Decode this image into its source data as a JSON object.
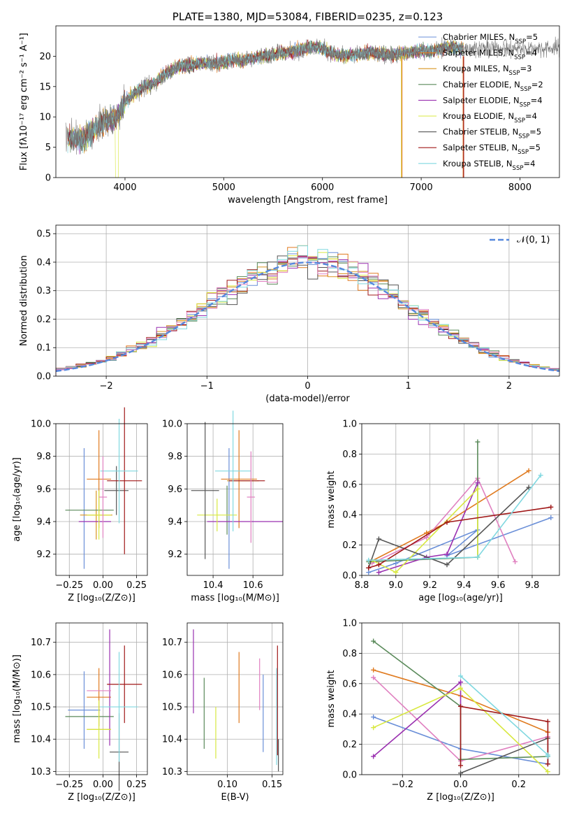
{
  "colors": {
    "chabrier_miles": "#6a8fd8",
    "salpeter_miles": "#e07b20",
    "kroupa_miles": "#d99520",
    "chabrier_elodie": "#5a8a5a",
    "salpeter_elodie": "#9a30b0",
    "kroupa_elodie": "#d8e840",
    "chabrier_stelib": "#555555",
    "salpeter_stelib": "#a01818",
    "kroupa_stelib": "#80d8e0",
    "pink": "#e080c0",
    "gaussian": "#5588dd",
    "grid": "#b0b0b0"
  },
  "chart_data": [
    {
      "id": "spectrum",
      "type": "line",
      "title": "PLATE=1380, MJD=53084, FIBERID=0235, z=0.123",
      "xlabel": "wavelength [Angstrom, rest frame]",
      "ylabel": "Flux [fλ10⁻¹⁷ erg cm⁻² s⁻¹ A⁻¹]",
      "xlim": [
        3300,
        8400
      ],
      "ylim": [
        0,
        25
      ],
      "xticks": [
        4000,
        5000,
        6000,
        7000,
        8000
      ],
      "yticks": [
        0,
        5,
        10,
        15,
        20
      ],
      "grid": false,
      "legend_position": "right",
      "legend": [
        {
          "label": "Chabrier MILES, N",
          "sub": "SSP",
          "tail": "=5",
          "color": "#6a8fd8"
        },
        {
          "label": "Salpeter MILES, N",
          "sub": "SSP",
          "tail": "=4",
          "color": "#e07b20"
        },
        {
          "label": "Kroupa MILES, N",
          "sub": "SSP",
          "tail": "=3",
          "color": "#d99520"
        },
        {
          "label": "Chabrier ELODIE, N",
          "sub": "SSP",
          "tail": "=2",
          "color": "#5a8a5a"
        },
        {
          "label": "Salpeter ELODIE, N",
          "sub": "SSP",
          "tail": "=4",
          "color": "#9a30b0"
        },
        {
          "label": "Kroupa ELODIE, N",
          "sub": "SSP",
          "tail": "=4",
          "color": "#d8e840"
        },
        {
          "label": "Chabrier STELIB, N",
          "sub": "SSP",
          "tail": "=5",
          "color": "#555555"
        },
        {
          "label": "Salpeter STELIB, N",
          "sub": "SSP",
          "tail": "=5",
          "color": "#a01818"
        },
        {
          "label": "Kroupa STELIB, N",
          "sub": "SSP",
          "tail": "=4",
          "color": "#80d8e0"
        }
      ],
      "continuum": [
        [
          3400,
          6.5
        ],
        [
          3500,
          6.3
        ],
        [
          3600,
          6.5
        ],
        [
          3700,
          8
        ],
        [
          3800,
          9.5
        ],
        [
          3900,
          9.5
        ],
        [
          4000,
          12.5
        ],
        [
          4100,
          14
        ],
        [
          4200,
          15
        ],
        [
          4300,
          15.5
        ],
        [
          4400,
          17
        ],
        [
          4500,
          18
        ],
        [
          4600,
          18.5
        ],
        [
          4700,
          18.5
        ],
        [
          4800,
          19
        ],
        [
          4900,
          18.8
        ],
        [
          5000,
          19
        ],
        [
          5100,
          19.5
        ],
        [
          5200,
          19.2
        ],
        [
          5300,
          19.7
        ],
        [
          5400,
          20
        ],
        [
          5500,
          20.3
        ],
        [
          5600,
          20.5
        ],
        [
          5700,
          20.8
        ],
        [
          5800,
          21.3
        ],
        [
          5900,
          21.7
        ],
        [
          6000,
          21.3
        ],
        [
          6100,
          20.5
        ],
        [
          6200,
          20
        ],
        [
          6300,
          20.2
        ],
        [
          6400,
          20.5
        ],
        [
          6500,
          20.7
        ],
        [
          6600,
          20.2
        ],
        [
          6700,
          20.3
        ],
        [
          6800,
          20.5
        ],
        [
          6900,
          20.7
        ],
        [
          7000,
          21
        ],
        [
          7100,
          20.8
        ],
        [
          7200,
          21.3
        ],
        [
          7300,
          21.5
        ],
        [
          7400,
          21.3
        ]
      ]
    },
    {
      "id": "residuals",
      "type": "histogram",
      "xlabel": "(data-model)/error",
      "ylabel": "Normed distribution",
      "xlim": [
        -2.5,
        2.5
      ],
      "ylim": [
        0,
        0.53
      ],
      "xticks": [
        -2,
        -1,
        0,
        1,
        2
      ],
      "yticks": [
        0.0,
        0.1,
        0.2,
        0.3,
        0.4,
        0.5
      ],
      "grid": true,
      "legend_position": "top-right",
      "gaussian_label": "𝒩(0, 1)",
      "bin_width": 0.1
    },
    {
      "id": "age_vs_Z",
      "type": "errorbar",
      "xlabel": "Z [log₁₀(Z/Z⊙)]",
      "ylabel": "age  [log₁₀(age/yr)]",
      "xlim": [
        -0.35,
        0.33
      ],
      "ylim": [
        9.07,
        10.0
      ],
      "xticks": [
        -0.25,
        0.0,
        0.25
      ],
      "yticks": [
        9.2,
        9.4,
        9.6,
        9.8,
        10.0
      ],
      "grid": true,
      "points": [
        {
          "x": -0.14,
          "y": 9.48,
          "xerr": 0.0,
          "yerr": 0.37,
          "color": "#6a8fd8",
          "xl": -0.14,
          "xh": -0.14
        },
        {
          "x": -0.03,
          "y": 9.66,
          "xerr": 0.09,
          "yerr": 0.3,
          "color": "#e07b20"
        },
        {
          "x": -0.05,
          "y": 9.44,
          "xerr": 0.12,
          "yerr": 0.15,
          "color": "#d99520"
        },
        {
          "x": -0.1,
          "y": 9.47,
          "xerr": 0.18,
          "yerr": 0.0,
          "color": "#5a8a5a"
        },
        {
          "x": -0.06,
          "y": 9.4,
          "xerr": 0.12,
          "yerr": 0.0,
          "color": "#9a30b0"
        },
        {
          "x": -0.03,
          "y": 9.44,
          "xerr": 0.09,
          "yerr": 0.15,
          "color": "#d8e840"
        },
        {
          "x": 0.1,
          "y": 9.59,
          "xerr": 0.09,
          "yerr": 0.15,
          "color": "#555555"
        },
        {
          "x": 0.16,
          "y": 9.65,
          "xerr": 0.13,
          "yerr": 0.45,
          "color": "#a01818"
        },
        {
          "x": 0.12,
          "y": 9.71,
          "xerr": 0.14,
          "yerr": 0.32,
          "color": "#80d8e0"
        },
        {
          "x": 0.0,
          "y": 9.55,
          "xerr": 0.03,
          "yerr": 0.25,
          "color": "#e080c0"
        }
      ]
    },
    {
      "id": "age_vs_mass",
      "type": "errorbar",
      "xlabel": "mass [log₁₀(M/M⊙)]",
      "xlim": [
        10.27,
        10.75
      ],
      "ylim": [
        9.07,
        10.0
      ],
      "xticks": [
        10.4,
        10.6
      ],
      "yticks": [
        9.2,
        9.4,
        9.6,
        9.8,
        10.0
      ],
      "grid": true,
      "points": [
        {
          "x": 10.48,
          "y": 9.48,
          "xerr": 0.0,
          "yerr": 0.37,
          "color": "#6a8fd8"
        },
        {
          "x": 10.53,
          "y": 9.66,
          "xerr": 0.09,
          "yerr": 0.3,
          "color": "#e07b20"
        },
        {
          "x": 10.55,
          "y": 9.65,
          "xerr": 0.08,
          "yerr": 0.0,
          "color": "#d99520"
        },
        {
          "x": 10.47,
          "y": 9.47,
          "xerr": 0.0,
          "yerr": 0.15,
          "color": "#5a8a5a"
        },
        {
          "x": 10.56,
          "y": 9.4,
          "xerr": 0.19,
          "yerr": 0.0,
          "color": "#9a30b0"
        },
        {
          "x": 10.42,
          "y": 9.44,
          "xerr": 0.1,
          "yerr": 0.1,
          "color": "#d8e840"
        },
        {
          "x": 10.36,
          "y": 9.59,
          "xerr": 0.07,
          "yerr": 0.42,
          "color": "#555555"
        },
        {
          "x": 10.57,
          "y": 9.65,
          "xerr": 0.09,
          "yerr": 0.0,
          "color": "#a01818"
        },
        {
          "x": 10.5,
          "y": 9.71,
          "xerr": 0.09,
          "yerr": 0.37,
          "color": "#80d8e0"
        },
        {
          "x": 10.59,
          "y": 9.55,
          "xerr": 0.02,
          "yerr": 0.28,
          "color": "#e080c0"
        }
      ]
    },
    {
      "id": "weight_vs_age",
      "type": "line",
      "xlabel": "age  [log₁₀(age/yr)]",
      "ylabel": "mass weight",
      "xlim": [
        8.8,
        9.96
      ],
      "ylim": [
        0,
        1
      ],
      "xticks": [
        8.8,
        9.0,
        9.2,
        9.4,
        9.6,
        9.8
      ],
      "yticks": [
        0.0,
        0.2,
        0.4,
        0.6,
        0.8,
        1.0
      ],
      "grid": true,
      "series": [
        {
          "color": "#6a8fd8",
          "x": [
            8.84,
            9.0,
            9.48,
            9.3,
            9.91
          ],
          "y": [
            0.02,
            0.08,
            0.3,
            0.13,
            0.38
          ]
        },
        {
          "color": "#e07b20",
          "x": [
            8.85,
            9.18,
            9.3,
            9.78
          ],
          "y": [
            0.09,
            0.28,
            0.35,
            0.69
          ]
        },
        {
          "color": "#e080c0",
          "x": [
            8.86,
            9.18,
            9.48,
            9.7
          ],
          "y": [
            0.08,
            0.25,
            0.64,
            0.09
          ]
        },
        {
          "color": "#5a8a5a",
          "x": [
            8.84,
            9.48,
            9.48
          ],
          "y": [
            0.09,
            0.12,
            0.88
          ]
        },
        {
          "color": "#9a30b0",
          "x": [
            8.9,
            9.18,
            9.3,
            9.48
          ],
          "y": [
            0.02,
            0.12,
            0.14,
            0.61
          ]
        },
        {
          "color": "#d8e840",
          "x": [
            8.86,
            9.0,
            9.48,
            9.48
          ],
          "y": [
            0.1,
            0.02,
            0.57,
            0.12
          ]
        },
        {
          "color": "#555555",
          "x": [
            8.84,
            8.9,
            9.3,
            9.78
          ],
          "y": [
            0.05,
            0.24,
            0.07,
            0.58
          ]
        },
        {
          "color": "#a01818",
          "x": [
            8.84,
            8.9,
            9.3,
            9.91
          ],
          "y": [
            0.05,
            0.07,
            0.35,
            0.45
          ]
        },
        {
          "color": "#80d8e0",
          "x": [
            8.84,
            9.48,
            9.85
          ],
          "y": [
            0.1,
            0.12,
            0.66
          ]
        }
      ]
    },
    {
      "id": "mass_vs_Z",
      "type": "errorbar",
      "xlabel": "Z [log₁₀(Z/Z⊙)]",
      "ylabel": "mass [log₁₀(M/M⊙)]",
      "xlim": [
        -0.35,
        0.33
      ],
      "ylim": [
        10.29,
        10.76
      ],
      "xticks": [
        -0.25,
        0.0,
        0.25
      ],
      "yticks": [
        10.3,
        10.4,
        10.5,
        10.6,
        10.7
      ],
      "grid": true,
      "points": [
        {
          "x": -0.14,
          "y": 10.49,
          "xerr": 0.12,
          "yerr": 0.12,
          "color": "#6a8fd8"
        },
        {
          "x": -0.03,
          "y": 10.53,
          "xerr": 0.09,
          "yerr": 0.09,
          "color": "#e07b20"
        },
        {
          "x": -0.03,
          "y": 10.43,
          "xerr": 0.09,
          "yerr": 0.0,
          "color": "#d99520"
        },
        {
          "x": -0.1,
          "y": 10.47,
          "xerr": 0.18,
          "yerr": 0.0,
          "color": "#5a8a5a"
        },
        {
          "x": 0.05,
          "y": 10.56,
          "xerr": 0.0,
          "yerr": 0.18,
          "color": "#9a30b0"
        },
        {
          "x": -0.03,
          "y": 10.43,
          "xerr": 0.09,
          "yerr": 0.09,
          "color": "#d8e840"
        },
        {
          "x": 0.12,
          "y": 10.36,
          "xerr": 0.07,
          "yerr": 0.12,
          "color": "#555555"
        },
        {
          "x": 0.16,
          "y": 10.57,
          "xerr": 0.13,
          "yerr": 0.12,
          "color": "#a01818"
        },
        {
          "x": 0.12,
          "y": 10.5,
          "xerr": 0.14,
          "yerr": 0.17,
          "color": "#80d8e0"
        },
        {
          "x": -0.03,
          "y": 10.55,
          "xerr": 0.09,
          "yerr": 0.0,
          "color": "#e080c0"
        }
      ]
    },
    {
      "id": "mass_vs_EBV",
      "type": "errorbar",
      "xlabel": "E(B-V)",
      "xlim": [
        0.055,
        0.162
      ],
      "ylim": [
        10.29,
        10.76
      ],
      "xticks": [
        0.05,
        0.1,
        0.15
      ],
      "yticks": [
        10.3,
        10.4,
        10.5,
        10.6,
        10.7
      ],
      "grid": true,
      "points": [
        {
          "x": 0.062,
          "y": 10.61,
          "yerr": 0.13,
          "color": "#9a30b0"
        },
        {
          "x": 0.074,
          "y": 10.48,
          "yerr": 0.11,
          "color": "#5a8a5a"
        },
        {
          "x": 0.087,
          "y": 10.42,
          "yerr": 0.08,
          "color": "#d8e840"
        },
        {
          "x": 0.113,
          "y": 10.56,
          "yerr": 0.11,
          "color": "#e07b20"
        },
        {
          "x": 0.136,
          "y": 10.57,
          "yerr": 0.08,
          "color": "#e080c0"
        },
        {
          "x": 0.14,
          "y": 10.48,
          "yerr": 0.12,
          "color": "#6a8fd8"
        },
        {
          "x": 0.155,
          "y": 10.47,
          "yerr": 0.15,
          "color": "#80d8e0"
        },
        {
          "x": 0.156,
          "y": 10.52,
          "yerr": 0.17,
          "color": "#a01818"
        },
        {
          "x": 0.157,
          "y": 10.35,
          "yerr": 0.05,
          "color": "#555555"
        }
      ]
    },
    {
      "id": "weight_vs_Z",
      "type": "line",
      "xlabel": "Z [log₁₀(Z/Z⊙)]",
      "ylabel": "mass weight",
      "xlim": [
        -0.34,
        0.34
      ],
      "ylim": [
        0,
        1
      ],
      "xticks": [
        -0.2,
        0.0,
        0.2
      ],
      "yticks": [
        0.0,
        0.2,
        0.4,
        0.6,
        0.8,
        1.0
      ],
      "grid": true,
      "series": [
        {
          "color": "#6a8fd8",
          "x": [
            -0.3,
            0.0,
            0.3
          ],
          "y": [
            0.38,
            0.17,
            0.07
          ]
        },
        {
          "color": "#e07b20",
          "x": [
            -0.3,
            0.0,
            0.3
          ],
          "y": [
            0.69,
            0.52,
            0.28
          ]
        },
        {
          "color": "#e080c0",
          "x": [
            -0.3,
            0.0,
            0.3
          ],
          "y": [
            0.64,
            0.09,
            0.25
          ]
        },
        {
          "color": "#5a8a5a",
          "x": [
            -0.3,
            0.0,
            0.0,
            0.3
          ],
          "y": [
            0.88,
            0.45,
            0.1,
            0.12
          ]
        },
        {
          "color": "#9a30b0",
          "x": [
            -0.3,
            0.0,
            0.0
          ],
          "y": [
            0.12,
            0.61,
            0.45
          ]
        },
        {
          "color": "#d8e840",
          "x": [
            -0.3,
            0.0,
            0.3
          ],
          "y": [
            0.31,
            0.57,
            0.02
          ]
        },
        {
          "color": "#555555",
          "x": [
            0.0,
            0.3,
            0.3
          ],
          "y": [
            0.01,
            0.24,
            0.07
          ]
        },
        {
          "color": "#a01818",
          "x": [
            0.0,
            0.0,
            0.3,
            0.3
          ],
          "y": [
            0.06,
            0.45,
            0.35,
            0.07
          ]
        },
        {
          "color": "#80d8e0",
          "x": [
            0.0,
            0.3,
            0.3
          ],
          "y": [
            0.65,
            0.13,
            0.12
          ]
        }
      ]
    }
  ]
}
